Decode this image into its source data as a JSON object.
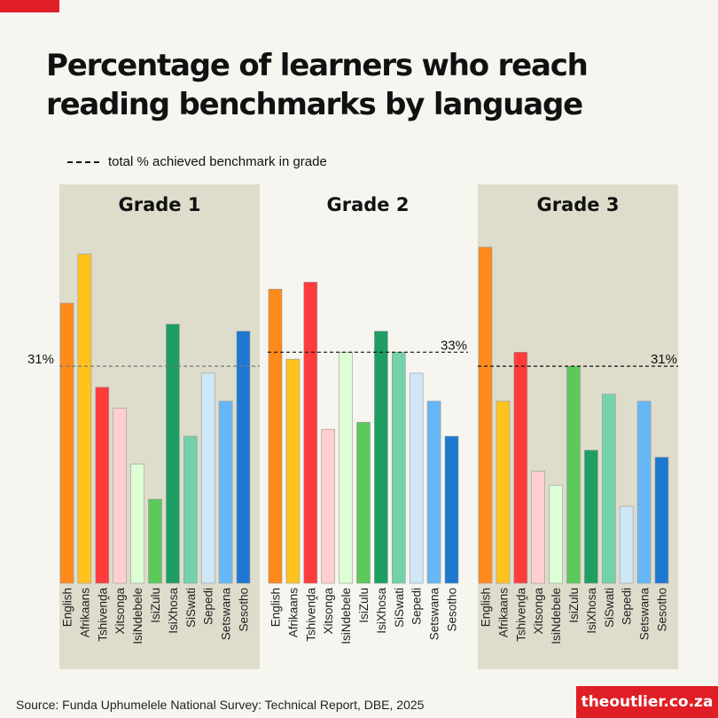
{
  "header": {
    "title_line1": "Percentage of learners who reach",
    "title_line2": "reading benchmarks by language"
  },
  "legend": {
    "label": "total % achieved benchmark in grade"
  },
  "footer": {
    "source": "Source: Funda Uphumelele National Survey: Technical Report, DBE,  2025",
    "brand": "theoutlier.co.za"
  },
  "colors": {
    "panel_bg": "#dedccb",
    "page_bg": "#f6f5f0",
    "accent_red": "#e01e26"
  },
  "chart_data": {
    "type": "bar",
    "categories": [
      "English",
      "Afrikaans",
      "Tshivenḓa",
      "Xitsonga",
      "IsiNdebele",
      "IsiZulu",
      "IsiXhosa",
      "SiSwati",
      "Sepedi",
      "Setswana",
      "Sesotho"
    ],
    "bar_colors": [
      "#ff8a1a",
      "#ffc21f",
      "#ff3b3b",
      "#ffcfcf",
      "#dcffd6",
      "#5cc95a",
      "#1e9e63",
      "#72d2aa",
      "#cfe6f7",
      "#66b7f5",
      "#1d78d1"
    ],
    "ylim": [
      0,
      50
    ],
    "panels": [
      {
        "title": "Grade 1",
        "values": [
          40,
          47,
          28,
          25,
          17,
          12,
          37,
          21,
          30,
          26,
          36
        ],
        "reference": 31,
        "reference_label": "31%",
        "reference_label_side": "left",
        "shaded": true
      },
      {
        "title": "Grade 2",
        "values": [
          42,
          32,
          43,
          22,
          33,
          23,
          36,
          33,
          30,
          26,
          21
        ],
        "reference": 33,
        "reference_label": "33%",
        "reference_label_side": "right",
        "shaded": false
      },
      {
        "title": "Grade 3",
        "values": [
          48,
          26,
          33,
          16,
          14,
          31,
          19,
          27,
          11,
          26,
          18
        ],
        "reference": 31,
        "reference_label": "31%",
        "reference_label_side": "right",
        "shaded": true
      }
    ]
  }
}
